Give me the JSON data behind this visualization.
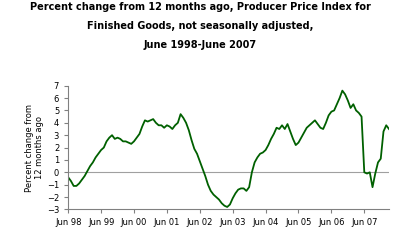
{
  "title_line1": "Percent change from 12 months ago, Producer Price Index for",
  "title_line2": "Finished Goods, not seasonally adjusted,",
  "title_line3": "June 1998-June 2007",
  "ylabel": "Percent change from\n12 months ago",
  "line_color": "#006000",
  "line_width": 1.3,
  "ylim": [
    -3,
    7
  ],
  "yticks": [
    -3,
    -2,
    -1,
    0,
    1,
    2,
    3,
    4,
    5,
    6,
    7
  ],
  "background_color": "#ffffff",
  "zero_line_color": "#a0a0a0",
  "x_tick_labels": [
    "Jun 98",
    "Jun 99",
    "Jun 00",
    "Jun 01",
    "Jun 02",
    "Jun 03",
    "Jun 04",
    "Jun 05",
    "Jun 06",
    "Jun 07"
  ],
  "x_tick_months": [
    0,
    12,
    24,
    36,
    48,
    60,
    72,
    84,
    96,
    108
  ],
  "values": [
    -0.4,
    -0.7,
    -1.1,
    -1.1,
    -0.9,
    -0.6,
    -0.3,
    0.1,
    0.5,
    0.8,
    1.2,
    1.5,
    1.8,
    2.0,
    2.5,
    2.8,
    3.0,
    2.7,
    2.8,
    2.7,
    2.5,
    2.5,
    2.4,
    2.3,
    2.5,
    2.8,
    3.1,
    3.7,
    4.2,
    4.1,
    4.2,
    4.3,
    4.0,
    3.8,
    3.8,
    3.6,
    3.8,
    3.7,
    3.5,
    3.8,
    4.0,
    4.7,
    4.4,
    4.0,
    3.4,
    2.6,
    1.9,
    1.5,
    0.9,
    0.3,
    -0.3,
    -1.0,
    -1.5,
    -1.8,
    -2.0,
    -2.2,
    -2.5,
    -2.7,
    -2.8,
    -2.6,
    -2.1,
    -1.7,
    -1.4,
    -1.3,
    -1.3,
    -1.5,
    -1.2,
    0.0,
    0.8,
    1.2,
    1.5,
    1.6,
    1.8,
    2.2,
    2.7,
    3.1,
    3.6,
    3.5,
    3.8,
    3.5,
    3.9,
    3.3,
    2.7,
    2.2,
    2.4,
    2.8,
    3.2,
    3.6,
    3.8,
    4.0,
    4.2,
    3.9,
    3.6,
    3.5,
    4.0,
    4.6,
    4.9,
    5.0,
    5.5,
    6.0,
    6.6,
    6.3,
    5.8,
    5.2,
    5.5,
    5.0,
    4.8,
    4.5,
    0.0,
    -0.1,
    0.0,
    -1.2,
    -0.1,
    0.8,
    1.1,
    3.3,
    3.8,
    3.5
  ]
}
